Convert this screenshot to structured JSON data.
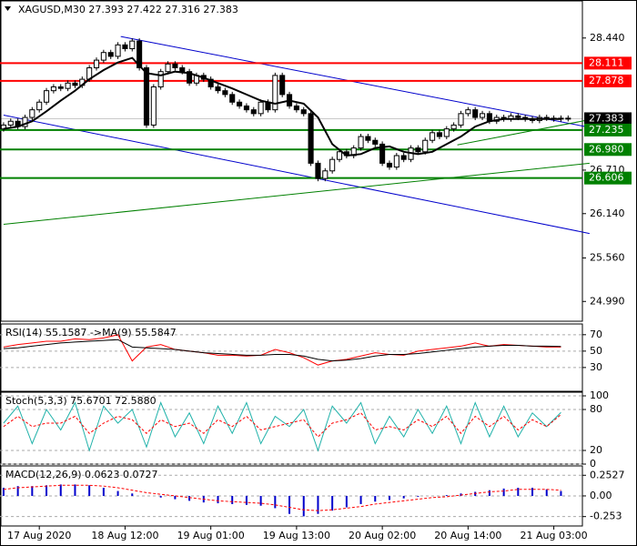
{
  "chart_data": [
    {
      "type": "candlestick",
      "title": "XAGUSD,M30  27.393 27.422 27.316 27.383",
      "xlim": [
        -0.5,
        81
      ],
      "ylim": [
        24.731,
        28.914
      ],
      "yticks": [
        {
          "value": 28.44,
          "label": "28.440"
        },
        {
          "value": 26.71,
          "label": "26.710"
        },
        {
          "value": 26.14,
          "label": "26.140"
        },
        {
          "value": 25.56,
          "label": "25.560"
        },
        {
          "value": 24.99,
          "label": "24.990"
        }
      ],
      "open": 27.25,
      "values": [
        27.3,
        27.35,
        27.28,
        27.4,
        27.5,
        27.6,
        27.75,
        27.8,
        27.78,
        27.85,
        27.82,
        27.9,
        28.05,
        28.15,
        28.25,
        28.2,
        28.35,
        28.3,
        28.4,
        28.05,
        27.3,
        27.8,
        28.0,
        28.1,
        28.05,
        28.0,
        27.85,
        27.95,
        27.9,
        27.8,
        27.75,
        27.7,
        27.6,
        27.55,
        27.5,
        27.45,
        27.6,
        27.5,
        27.95,
        27.7,
        27.55,
        27.5,
        27.45,
        26.8,
        26.6,
        26.7,
        26.85,
        26.95,
        26.9,
        27.0,
        27.15,
        27.1,
        27.05,
        26.8,
        26.75,
        26.9,
        26.85,
        27.0,
        26.95,
        27.1,
        27.2,
        27.15,
        27.25,
        27.3,
        27.45,
        27.5,
        27.4,
        27.45,
        27.35,
        27.4,
        27.38,
        27.42,
        27.4,
        27.38,
        27.36,
        27.4,
        27.39,
        27.38,
        27.39,
        27.383
      ],
      "ma": {
        "color": "#000000",
        "x": [
          0,
          2,
          4,
          6,
          8,
          10,
          12,
          14,
          16,
          18,
          20,
          22,
          24,
          26,
          28,
          30,
          32,
          34,
          36,
          38,
          40,
          42,
          44,
          46,
          48,
          50,
          52,
          54,
          56,
          58,
          60,
          62,
          64,
          66,
          68,
          70,
          72,
          74,
          76,
          78
        ],
        "values": [
          27.25,
          27.28,
          27.35,
          27.48,
          27.62,
          27.75,
          27.9,
          28.02,
          28.12,
          28.18,
          27.98,
          27.95,
          28.0,
          27.98,
          27.92,
          27.85,
          27.78,
          27.7,
          27.62,
          27.58,
          27.62,
          27.58,
          27.4,
          27.05,
          26.9,
          26.92,
          27.0,
          27.02,
          26.95,
          26.92,
          26.95,
          27.05,
          27.15,
          27.28,
          27.35,
          27.38,
          27.38,
          27.38,
          27.38,
          27.38
        ]
      },
      "levels": [
        {
          "value": 28.111,
          "label": "28.111",
          "color": "#ff0000"
        },
        {
          "value": 27.878,
          "label": "27.878",
          "color": "#ff0000"
        },
        {
          "value": 27.383,
          "label": "27.383",
          "color": "#000000"
        },
        {
          "value": 27.235,
          "label": "27.235",
          "color": "#008000"
        },
        {
          "value": 26.98,
          "label": "26.980",
          "color": "#008000"
        },
        {
          "value": 26.606,
          "label": "26.606",
          "color": "#008000"
        }
      ],
      "trendlines": [
        {
          "color": "#0000cc",
          "x": [
            16.4,
            82
          ],
          "values": [
            28.46,
            27.27
          ]
        },
        {
          "color": "#0000cc",
          "x": [
            0,
            82
          ],
          "values": [
            27.43,
            25.88
          ]
        },
        {
          "color": "#008000",
          "x": [
            0,
            82
          ],
          "values": [
            26.0,
            26.8
          ]
        },
        {
          "color": "#008000",
          "x": [
            63.5,
            82
          ],
          "values": [
            27.04,
            27.37
          ]
        }
      ]
    },
    {
      "type": "line",
      "title": "RSI(14) 55.1587 ->MA(9) 55.5847",
      "xlim": [
        -0.5,
        81
      ],
      "ylim": [
        1,
        82
      ],
      "yticks": [
        70,
        50,
        30
      ],
      "x": [
        0,
        2,
        4,
        6,
        8,
        10,
        12,
        14,
        16,
        18,
        20,
        22,
        24,
        26,
        28,
        30,
        32,
        34,
        36,
        38,
        40,
        42,
        44,
        46,
        48,
        50,
        52,
        54,
        56,
        58,
        60,
        62,
        64,
        66,
        68,
        70,
        72,
        74,
        76,
        78
      ],
      "series": [
        {
          "color": "#ff0000",
          "values": [
            55,
            58,
            60,
            62,
            62,
            65,
            64,
            66,
            70,
            38,
            55,
            58,
            52,
            50,
            48,
            45,
            45,
            44,
            45,
            52,
            48,
            42,
            33,
            38,
            40,
            44,
            48,
            46,
            45,
            50,
            52,
            54,
            56,
            60,
            56,
            58,
            57,
            56,
            55,
            55
          ]
        },
        {
          "color": "#000000",
          "values": [
            53,
            54,
            56,
            58,
            60,
            61,
            62,
            63,
            64,
            55,
            54,
            53,
            52,
            50,
            48,
            47,
            46,
            45,
            45,
            46,
            46,
            44,
            40,
            38,
            39,
            41,
            44,
            46,
            46,
            47,
            49,
            51,
            53,
            55,
            56,
            57,
            57,
            56,
            56,
            55.6
          ]
        }
      ]
    },
    {
      "type": "line",
      "title": "Stoch(5,3,3) 75.6701 72.5880",
      "xlim": [
        -0.5,
        81
      ],
      "ylim": [
        0,
        104
      ],
      "yticks": [
        100,
        80,
        20,
        0
      ],
      "x": [
        0,
        2,
        4,
        6,
        8,
        10,
        12,
        14,
        16,
        18,
        20,
        22,
        24,
        26,
        28,
        30,
        32,
        34,
        36,
        38,
        40,
        42,
        44,
        46,
        48,
        50,
        52,
        54,
        56,
        58,
        60,
        62,
        64,
        66,
        68,
        70,
        72,
        74,
        76,
        78
      ],
      "series": [
        {
          "color": "#20b2aa",
          "values": [
            60,
            85,
            30,
            80,
            50,
            90,
            20,
            85,
            60,
            80,
            25,
            90,
            40,
            75,
            30,
            85,
            45,
            90,
            30,
            70,
            55,
            80,
            20,
            85,
            60,
            90,
            30,
            70,
            40,
            80,
            45,
            85,
            30,
            90,
            40,
            85,
            40,
            75,
            55,
            75.67
          ]
        },
        {
          "color": "#ff0000",
          "dashed": true,
          "values": [
            55,
            70,
            55,
            60,
            60,
            70,
            45,
            60,
            70,
            65,
            45,
            65,
            55,
            60,
            45,
            65,
            55,
            70,
            50,
            55,
            60,
            65,
            40,
            60,
            65,
            75,
            50,
            55,
            50,
            65,
            55,
            70,
            45,
            70,
            55,
            70,
            50,
            65,
            55,
            72.59
          ]
        }
      ]
    },
    {
      "type": "macd",
      "title": "MACD(12,26,9) 0.0623 0.0727",
      "xlim": [
        -0.5,
        81
      ],
      "ylim": [
        -0.368,
        0.356
      ],
      "yticks": [
        0.2527,
        {
          "value": 0,
          "label": "0.00"
        },
        -0.253
      ],
      "xticks": [
        {
          "value": 5,
          "label": "17 Aug 2020"
        },
        {
          "value": 17,
          "label": "18 Aug 12:00"
        },
        {
          "value": 29,
          "label": "19 Aug 01:00"
        },
        {
          "value": 41,
          "label": "19 Aug 13:00"
        },
        {
          "value": 53,
          "label": "20 Aug 02:00"
        },
        {
          "value": 65,
          "label": "20 Aug 14:00"
        },
        {
          "value": 77,
          "label": "21 Aug 03:00"
        }
      ],
      "x": [
        0,
        2,
        4,
        6,
        8,
        10,
        12,
        14,
        16,
        18,
        20,
        22,
        24,
        26,
        28,
        30,
        32,
        34,
        36,
        38,
        40,
        42,
        44,
        46,
        48,
        50,
        52,
        54,
        56,
        58,
        60,
        62,
        64,
        66,
        68,
        70,
        72,
        74,
        76,
        78
      ],
      "histogram": {
        "color": "#0000cc",
        "values": [
          0.1,
          0.12,
          0.12,
          0.13,
          0.14,
          0.14,
          0.13,
          0.1,
          0.06,
          0.03,
          0.0,
          -0.02,
          -0.04,
          -0.06,
          -0.08,
          -0.09,
          -0.1,
          -0.11,
          -0.12,
          -0.15,
          -0.22,
          -0.25,
          -0.22,
          -0.18,
          -0.14,
          -0.1,
          -0.07,
          -0.05,
          -0.03,
          -0.01,
          0.0,
          0.01,
          0.03,
          0.05,
          0.07,
          0.09,
          0.1,
          0.1,
          0.08,
          0.06
        ]
      },
      "signal": {
        "color": "#ff0000",
        "values": [
          0.08,
          0.1,
          0.11,
          0.12,
          0.13,
          0.13,
          0.13,
          0.12,
          0.1,
          0.07,
          0.04,
          0.02,
          0.0,
          -0.02,
          -0.04,
          -0.06,
          -0.07,
          -0.08,
          -0.09,
          -0.11,
          -0.14,
          -0.17,
          -0.18,
          -0.17,
          -0.15,
          -0.13,
          -0.1,
          -0.08,
          -0.06,
          -0.04,
          -0.02,
          -0.01,
          0.01,
          0.03,
          0.05,
          0.06,
          0.08,
          0.08,
          0.08,
          0.07
        ]
      }
    }
  ]
}
